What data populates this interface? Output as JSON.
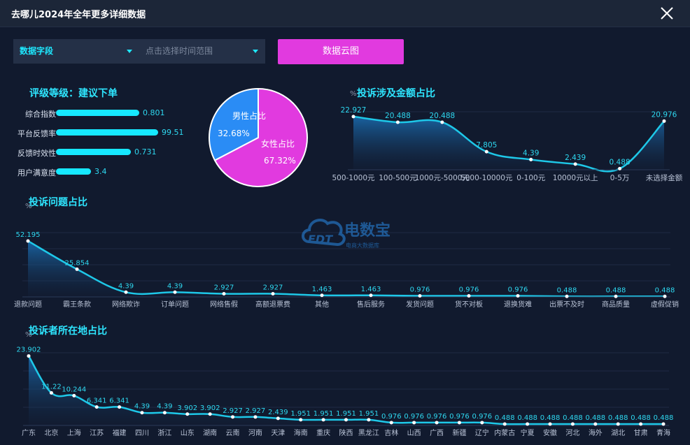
{
  "window": {
    "title": "去哪儿2024年全年更多详细数据"
  },
  "filters": {
    "field_label": "数据字段",
    "range_placeholder": "点击选择时间范围",
    "cloud_button": "数据云图"
  },
  "rating": {
    "title": "评级等级：建议下单",
    "items": [
      {
        "label": "综合指数",
        "value": "0.801",
        "fraction": 0.69
      },
      {
        "label": "平台反馈率",
        "value": "99.51",
        "fraction": 0.85
      },
      {
        "label": "反馈时效性",
        "value": "0.731",
        "fraction": 0.62
      },
      {
        "label": "用户满意度",
        "value": "3.4",
        "fraction": 0.29
      }
    ]
  },
  "gender": {
    "male_label": "男性占比",
    "male_value": "32.68%",
    "male_pct": 32.68,
    "female_label": "女性占比",
    "female_value": "67.32%",
    "female_pct": 67.32,
    "colors": {
      "male": "#2a8cf5",
      "female": "#e13adf"
    }
  },
  "watermark": {
    "brand_cn": "电数宝",
    "brand_en": "EDT",
    "sub": "电商大数据库"
  },
  "colors": {
    "accent": "#1ee8ff",
    "line": "#1ec8e8",
    "button": "#e13adf"
  },
  "chart_data": [
    {
      "id": "amount",
      "type": "area",
      "title": "投诉涉及金额占比",
      "unit": "%",
      "categories": [
        "500-1000元",
        "100-500元",
        "1000元-5000元",
        "5000-10000元",
        "0-100元",
        "10000元以上",
        "0-5万",
        "未选择金额"
      ],
      "values": [
        22.927,
        20.488,
        20.488,
        7.805,
        4.39,
        2.439,
        0.488,
        20.976
      ],
      "ylim": [
        0,
        25
      ]
    },
    {
      "id": "issue",
      "type": "area",
      "title": "投诉问题占比",
      "unit": "%",
      "categories": [
        "退款问题",
        "霸王条款",
        "网络欺诈",
        "订单问题",
        "网络售假",
        "高额退票费",
        "其他",
        "售后服务",
        "发货问题",
        "货不对板",
        "退换货难",
        "出票不及时",
        "商品质量",
        "虚假促销"
      ],
      "values": [
        52.195,
        25.854,
        4.39,
        4.39,
        2.927,
        2.927,
        1.463,
        1.463,
        0.976,
        0.976,
        0.976,
        0.488,
        0.488,
        0.488
      ],
      "ylim": [
        0,
        60
      ]
    },
    {
      "id": "region",
      "type": "area",
      "title": "投诉者所在地占比",
      "unit": "%",
      "categories": [
        "广东",
        "北京",
        "上海",
        "江苏",
        "福建",
        "四川",
        "浙江",
        "山东",
        "湖南",
        "云南",
        "河南",
        "天津",
        "海南",
        "重庆",
        "陕西",
        "黑龙江",
        "吉林",
        "山西",
        "广西",
        "新疆",
        "辽宁",
        "内蒙古",
        "宁夏",
        "安徽",
        "河北",
        "海外",
        "湖北",
        "甘肃",
        "青海"
      ],
      "values": [
        23.902,
        11.22,
        10.244,
        6.341,
        6.341,
        4.39,
        4.39,
        3.902,
        3.902,
        2.927,
        2.927,
        2.439,
        1.951,
        1.951,
        1.951,
        1.951,
        0.976,
        0.976,
        0.976,
        0.976,
        0.976,
        0.488,
        0.488,
        0.488,
        0.488,
        0.488,
        0.488,
        0.488,
        0.488
      ],
      "ylim": [
        0,
        25
      ]
    }
  ]
}
